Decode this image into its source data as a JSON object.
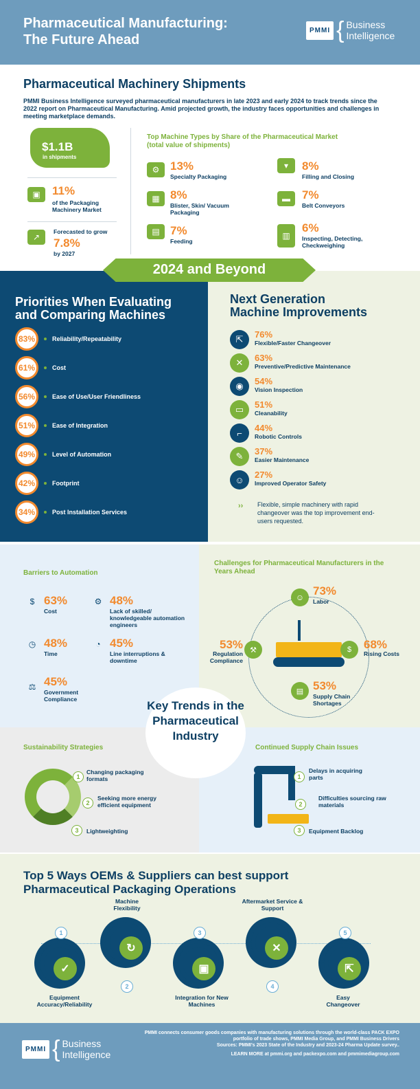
{
  "header": {
    "title_line1": "Pharmaceutical Manufacturing:",
    "title_line2": "The Future Ahead",
    "logo_box": "PMMI",
    "logo_text1": "Business",
    "logo_text2": "Intelligence"
  },
  "shipments": {
    "title": "Pharmaceutical Machinery Shipments",
    "intro": "PMMI Business Intelligence surveyed pharmaceutical manufacturers in late 2023 and early 2024 to track trends since the 2022 report on Pharmaceutical Manufacturing. Amid projected growth, the industry faces opportunities and challenges in meeting marketplace demands.",
    "value": "$1.1B",
    "value_label": "in shipments",
    "share": "11%",
    "share_label": "of the Packaging Machinery Market",
    "forecast_label": "Forecasted to grow",
    "forecast": "7.8%",
    "forecast_year": "by 2027",
    "types_title": "Top Machine Types by Share of the Pharmaceutical Market (total value of shipments)",
    "types": [
      {
        "pct": "13%",
        "label": "Specialty Packaging"
      },
      {
        "pct": "8%",
        "label": "Filling and Closing"
      },
      {
        "pct": "8%",
        "label": "Blister, Skin/ Vacuum Packaging"
      },
      {
        "pct": "7%",
        "label": "Belt Conveyors"
      },
      {
        "pct": "7%",
        "label": "Feeding"
      },
      {
        "pct": "6%",
        "label": "Inspecting, Detecting, Checkweighing"
      }
    ]
  },
  "band": "2024 and Beyond",
  "priorities": {
    "title_line1": "Priorities When Evaluating",
    "title_line2": "and Comparing Machines",
    "items": [
      {
        "pct": "83%",
        "label": "Reliability/Repeatability"
      },
      {
        "pct": "61%",
        "label": "Cost"
      },
      {
        "pct": "56%",
        "label": "Ease of Use/User Friendliness"
      },
      {
        "pct": "51%",
        "label": "Ease of Integration"
      },
      {
        "pct": "49%",
        "label": "Level of Automation"
      },
      {
        "pct": "42%",
        "label": "Footprint"
      },
      {
        "pct": "34%",
        "label": "Post Installation Services"
      }
    ]
  },
  "next_gen": {
    "title_line1": "Next Generation",
    "title_line2": "Machine Improvements",
    "items": [
      {
        "pct": "76%",
        "label": "Flexible/Faster Changeover"
      },
      {
        "pct": "63%",
        "label": "Preventive/Predictive Maintenance"
      },
      {
        "pct": "54%",
        "label": "Vision Inspection"
      },
      {
        "pct": "51%",
        "label": "Cleanability"
      },
      {
        "pct": "44%",
        "label": "Robotic Controls"
      },
      {
        "pct": "37%",
        "label": "Easier Maintenance"
      },
      {
        "pct": "27%",
        "label": "Improved Operator Safety"
      }
    ],
    "note": "Flexible, simple machinery with rapid changeover was the top improvement end-users requested."
  },
  "barriers": {
    "title": "Barriers to Automation",
    "items": [
      {
        "pct": "63%",
        "label": "Cost"
      },
      {
        "pct": "48%",
        "label": "Lack of skilled/ knowledgeable automation engineers"
      },
      {
        "pct": "48%",
        "label": "Time"
      },
      {
        "pct": "45%",
        "label": "Line interruptions & downtime"
      },
      {
        "pct": "45%",
        "label": "Government Compliance"
      }
    ]
  },
  "challenges": {
    "title": "Challenges for Pharmaceutical Manufacturers in the Years Ahead",
    "items": [
      {
        "pct": "73%",
        "label": "Labor"
      },
      {
        "pct": "68%",
        "label": "Rising Costs"
      },
      {
        "pct": "53%",
        "label": "Supply Chain Shortages"
      },
      {
        "pct": "53%",
        "label": "Regulation Compliance"
      }
    ]
  },
  "key_trends": "Key Trends in the Pharmaceutical Industry",
  "sustainability": {
    "title": "Sustainability Strategies",
    "items": [
      "Changing packaging formats",
      "Seeking more energy efficient equipment",
      "Lightweighting"
    ]
  },
  "supply": {
    "title": "Continued Supply Chain Issues",
    "items": [
      "Delays in acquiring parts",
      "Difficulties sourcing raw materials",
      "Equipment Backlog"
    ]
  },
  "top5": {
    "title_line1": "Top 5 Ways OEMs & Suppliers can best support",
    "title_line2": "Pharmaceutical Packaging Operations",
    "items": [
      {
        "n": "1",
        "label": "Equipment Accuracy/Reliability"
      },
      {
        "n": "2",
        "label": "Machine Flexibility"
      },
      {
        "n": "3",
        "label": "Integration for New Machines"
      },
      {
        "n": "4",
        "label": "Aftermarket Service & Support"
      },
      {
        "n": "5",
        "label": "Easy Changeover"
      }
    ]
  },
  "footer": {
    "line1": "PMMI connects consumer goods companies with manufacturing solutions through the world-class PACK EXPO portfolio of trade shows, PMMI Media Group, and PMMI Business Drivers",
    "line2": "Sources: PMMI's 2023 State of the Industry and 2023-24 Pharma Update survey..",
    "line3": "LEARN MORE at pmmi.org and packexpo.com and pmmimediagroup.com"
  }
}
